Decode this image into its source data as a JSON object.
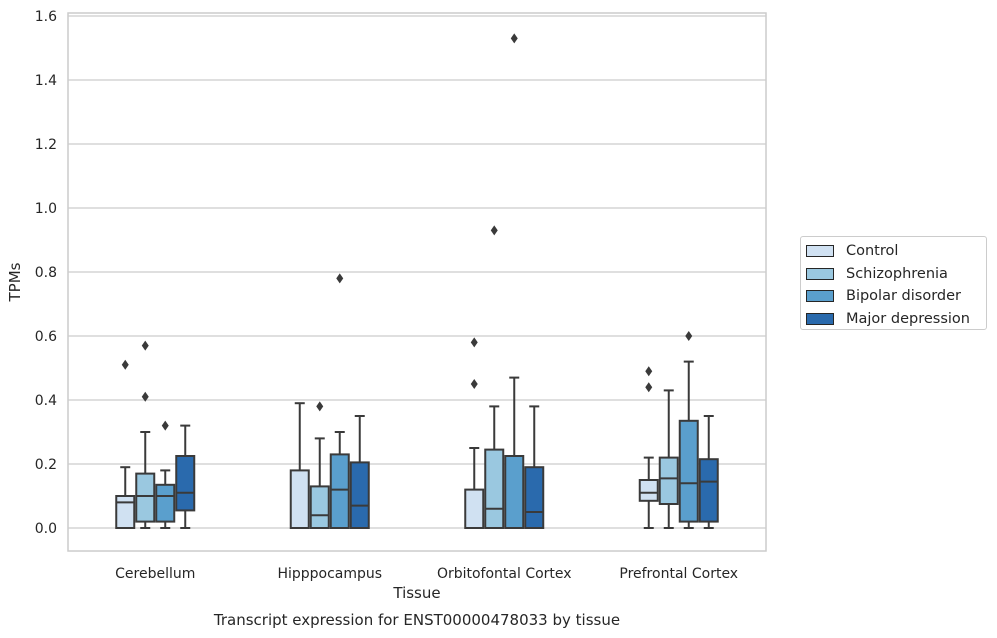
{
  "chart_data": {
    "type": "box",
    "title": "",
    "xlabel": "Tissue",
    "ylabel": "TPMs",
    "caption": "Transcript expression for ENST00000478033 by tissue",
    "ylim": [
      -0.07,
      1.61
    ],
    "yticks": [
      "0.0",
      "0.2",
      "0.4",
      "0.6",
      "0.8",
      "1.0",
      "1.2",
      "1.4",
      "1.6"
    ],
    "categories": [
      "Cerebellum",
      "Hipppocampus",
      "Orbitofontal Cortex",
      "Prefrontal Cortex"
    ],
    "grid": true,
    "legend_position": "right",
    "series": [
      {
        "name": "Control",
        "color": "#d0e1f2",
        "boxes": [
          {
            "min": 0.0,
            "q1": 0.0,
            "median": 0.08,
            "q3": 0.1,
            "max": 0.19,
            "outliers": [
              0.51
            ]
          },
          {
            "min": 0.0,
            "q1": 0.0,
            "median": 0.0,
            "q3": 0.18,
            "max": 0.39,
            "outliers": []
          },
          {
            "min": 0.0,
            "q1": 0.0,
            "median": 0.0,
            "q3": 0.12,
            "max": 0.25,
            "outliers": [
              0.45,
              0.58
            ]
          },
          {
            "min": 0.0,
            "q1": 0.085,
            "median": 0.11,
            "q3": 0.15,
            "max": 0.22,
            "outliers": [
              0.44,
              0.49
            ]
          }
        ]
      },
      {
        "name": "Schizophrenia",
        "color": "#9ac8e0",
        "boxes": [
          {
            "min": 0.0,
            "q1": 0.02,
            "median": 0.1,
            "q3": 0.17,
            "max": 0.3,
            "outliers": [
              0.41,
              0.57
            ]
          },
          {
            "min": 0.0,
            "q1": 0.0,
            "median": 0.04,
            "q3": 0.13,
            "max": 0.28,
            "outliers": [
              0.38
            ]
          },
          {
            "min": 0.0,
            "q1": 0.0,
            "median": 0.06,
            "q3": 0.245,
            "max": 0.38,
            "outliers": [
              0.93
            ]
          },
          {
            "min": 0.0,
            "q1": 0.075,
            "median": 0.155,
            "q3": 0.22,
            "max": 0.43,
            "outliers": []
          }
        ]
      },
      {
        "name": "Bipolar disorder",
        "color": "#5a9fcd",
        "boxes": [
          {
            "min": 0.0,
            "q1": 0.02,
            "median": 0.1,
            "q3": 0.135,
            "max": 0.18,
            "outliers": [
              0.32
            ]
          },
          {
            "min": 0.0,
            "q1": 0.0,
            "median": 0.12,
            "q3": 0.23,
            "max": 0.3,
            "outliers": [
              0.78
            ]
          },
          {
            "min": 0.0,
            "q1": 0.0,
            "median": 0.0,
            "q3": 0.225,
            "max": 0.47,
            "outliers": [
              1.53
            ]
          },
          {
            "min": 0.0,
            "q1": 0.02,
            "median": 0.14,
            "q3": 0.335,
            "max": 0.52,
            "outliers": [
              0.6
            ]
          }
        ]
      },
      {
        "name": "Major depression",
        "color": "#2a6aad",
        "boxes": [
          {
            "min": 0.0,
            "q1": 0.055,
            "median": 0.11,
            "q3": 0.225,
            "max": 0.32,
            "outliers": []
          },
          {
            "min": 0.0,
            "q1": 0.0,
            "median": 0.07,
            "q3": 0.205,
            "max": 0.35,
            "outliers": []
          },
          {
            "min": 0.0,
            "q1": 0.0,
            "median": 0.05,
            "q3": 0.19,
            "max": 0.38,
            "outliers": []
          },
          {
            "min": 0.0,
            "q1": 0.02,
            "median": 0.145,
            "q3": 0.215,
            "max": 0.35,
            "outliers": []
          }
        ]
      }
    ]
  }
}
